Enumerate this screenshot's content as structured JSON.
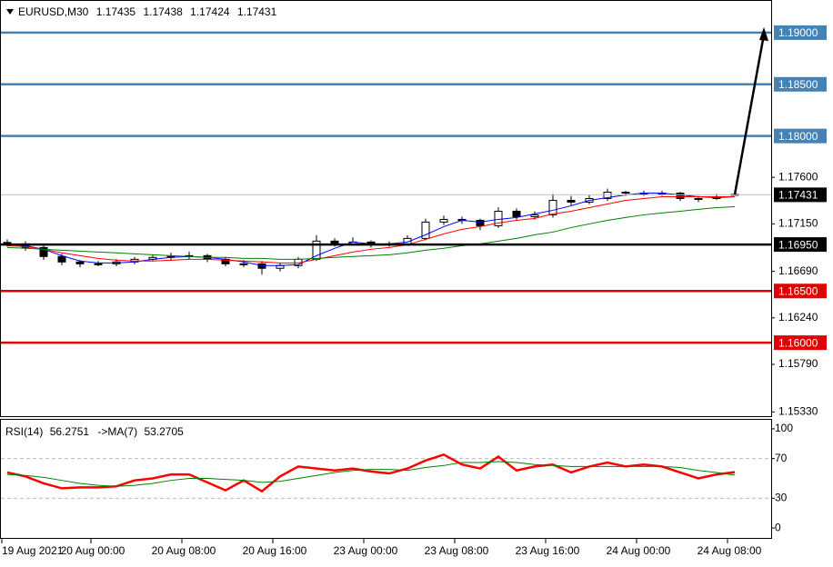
{
  "chart_data": [
    {
      "type": "candlestick",
      "symbol": "EURUSD,M30",
      "candles": [
        [
          1.1697,
          1.17,
          1.1693,
          1.16956
        ],
        [
          1.16956,
          1.1698,
          1.1689,
          1.16921
        ],
        [
          1.16921,
          1.1694,
          1.168,
          1.16834
        ],
        [
          1.16834,
          1.1686,
          1.1675,
          1.16781
        ],
        [
          1.16781,
          1.168,
          1.1673,
          1.16763
        ],
        [
          1.16763,
          1.1679,
          1.1674,
          1.16763
        ],
        [
          1.16763,
          1.1681,
          1.1674,
          1.16781
        ],
        [
          1.16781,
          1.1683,
          1.1676,
          1.16807
        ],
        [
          1.16807,
          1.1685,
          1.1679,
          1.16825
        ],
        [
          1.16825,
          1.1687,
          1.168,
          1.16834
        ],
        [
          1.16834,
          1.1688,
          1.1681,
          1.16842
        ],
        [
          1.16842,
          1.1686,
          1.1678,
          1.16807
        ],
        [
          1.16807,
          1.1683,
          1.1674,
          1.16763
        ],
        [
          1.16763,
          1.168,
          1.1673,
          1.16763
        ],
        [
          1.16763,
          1.1679,
          1.1666,
          1.1672
        ],
        [
          1.1672,
          1.1677,
          1.1669,
          1.16746
        ],
        [
          1.16746,
          1.1683,
          1.1672,
          1.16807
        ],
        [
          1.16807,
          1.1704,
          1.1679,
          1.16983
        ],
        [
          1.16983,
          1.1701,
          1.1693,
          1.16956
        ],
        [
          1.16956,
          1.1702,
          1.1694,
          1.16974
        ],
        [
          1.16974,
          1.1699,
          1.1692,
          1.16948
        ],
        [
          1.16948,
          1.1698,
          1.1693,
          1.16956
        ],
        [
          1.16956,
          1.1704,
          1.1694,
          1.17009
        ],
        [
          1.17009,
          1.172,
          1.1699,
          1.17167
        ],
        [
          1.17167,
          1.1723,
          1.1714,
          1.17193
        ],
        [
          1.17193,
          1.1722,
          1.1715,
          1.17184
        ],
        [
          1.17184,
          1.172,
          1.1709,
          1.17132
        ],
        [
          1.17132,
          1.1731,
          1.1711,
          1.17272
        ],
        [
          1.17272,
          1.173,
          1.1719,
          1.17219
        ],
        [
          1.17219,
          1.1727,
          1.1719,
          1.17237
        ],
        [
          1.17237,
          1.1744,
          1.1721,
          1.17377
        ],
        [
          1.17377,
          1.1742,
          1.1733,
          1.1736
        ],
        [
          1.1736,
          1.1743,
          1.1734,
          1.17395
        ],
        [
          1.17395,
          1.1749,
          1.1737,
          1.17456
        ],
        [
          1.17456,
          1.1747,
          1.1742,
          1.17447
        ],
        [
          1.17447,
          1.1747,
          1.1742,
          1.17447
        ],
        [
          1.17447,
          1.1747,
          1.1742,
          1.17447
        ],
        [
          1.17447,
          1.1746,
          1.1737,
          1.17395
        ],
        [
          1.17395,
          1.1742,
          1.1736,
          1.17395
        ],
        [
          1.17395,
          1.1744,
          1.1738,
          1.17412
        ],
        [
          1.17435,
          1.17438,
          1.17424,
          1.17431
        ]
      ],
      "series": [
        {
          "color": "#0000ff",
          "values": [
            1.16956,
            1.16939,
            1.16904,
            1.16842,
            1.1679,
            1.16772,
            1.16772,
            1.16781,
            1.16807,
            1.16825,
            1.16834,
            1.16825,
            1.16807,
            1.16781,
            1.16746,
            1.16746,
            1.16755,
            1.16842,
            1.16913,
            1.16974,
            1.16956,
            1.16956,
            1.16974,
            1.17044,
            1.17123,
            1.17184,
            1.17167,
            1.17193,
            1.17211,
            1.17246,
            1.17281,
            1.17325,
            1.17377,
            1.17404,
            1.1743,
            1.17447,
            1.17447,
            1.1743,
            1.17412,
            1.17404,
            1.17412
          ]
        },
        {
          "color": "#ff0000",
          "values": [
            1.16939,
            1.1693,
            1.16904,
            1.16869,
            1.16842,
            1.16816,
            1.16798,
            1.1679,
            1.1679,
            1.16798,
            1.16807,
            1.16807,
            1.16798,
            1.1679,
            1.16781,
            1.16772,
            1.16772,
            1.16807,
            1.16842,
            1.16877,
            1.16904,
            1.16921,
            1.16948,
            1.17,
            1.17053,
            1.17097,
            1.17123,
            1.17158,
            1.17184,
            1.17202,
            1.17246,
            1.17272,
            1.17307,
            1.17342,
            1.17377,
            1.17395,
            1.17412,
            1.17412,
            1.17412,
            1.17412,
            1.17412
          ]
        },
        {
          "color": "#008000",
          "values": [
            1.16921,
            1.16913,
            1.16904,
            1.16895,
            1.16886,
            1.16877,
            1.16869,
            1.1686,
            1.16851,
            1.16842,
            1.16834,
            1.16825,
            1.16825,
            1.16816,
            1.16816,
            1.16807,
            1.16807,
            1.16816,
            1.16825,
            1.16834,
            1.16842,
            1.16851,
            1.16869,
            1.16895,
            1.16913,
            1.16939,
            1.16956,
            1.16983,
            1.17009,
            1.17044,
            1.1707,
            1.17114,
            1.17149,
            1.17184,
            1.17211,
            1.17237,
            1.17255,
            1.17272,
            1.1729,
            1.17307,
            1.17316
          ]
        }
      ],
      "ylim": [
        1.15289,
        1.19307
      ],
      "yticks": [
        {
          "value": 1.176,
          "label": "1.17600"
        },
        {
          "value": 1.1715,
          "label": "1.17150"
        },
        {
          "value": 1.1669,
          "label": "1.16690"
        },
        {
          "value": 1.1624,
          "label": "1.16240"
        },
        {
          "value": 1.1579,
          "label": "1.15790"
        },
        {
          "value": 1.1533,
          "label": "1.15330"
        }
      ],
      "levels": [
        {
          "value": 1.19,
          "label": "1.19000",
          "color": "#4682b4"
        },
        {
          "value": 1.185,
          "label": "1.18500",
          "color": "#4682b4"
        },
        {
          "value": 1.18,
          "label": "1.18000",
          "color": "#4682b4"
        },
        {
          "value": 1.1695,
          "label": "1.16950",
          "color": "#000000"
        },
        {
          "value": 1.165,
          "label": "1.16500",
          "color": "#e00000"
        },
        {
          "value": 1.16,
          "label": "1.16000",
          "color": "#e00000"
        }
      ],
      "x_labels": [
        "19 Aug 2021",
        "20 Aug 00:00",
        "20 Aug 08:00",
        "20 Aug 16:00",
        "23 Aug 00:00",
        "23 Aug 08:00",
        "23 Aug 16:00",
        "24 Aug 00:00",
        "24 Aug 08:00"
      ]
    },
    {
      "type": "line",
      "title": "RSI(14)",
      "ma_label": "->MA(7)",
      "series": [
        {
          "color": "#ff0000",
          "values": [
            56,
            52,
            45,
            40,
            41,
            41,
            42,
            48,
            50,
            54,
            54,
            46,
            38,
            48,
            37,
            52,
            62,
            60,
            58,
            60,
            57,
            55,
            60,
            68,
            74,
            64,
            60,
            72,
            58,
            62,
            64,
            56,
            62,
            66,
            62,
            64,
            62,
            56,
            50,
            54,
            56.2751
          ]
        },
        {
          "color": "#008000",
          "values": [
            54,
            53,
            51,
            48,
            45,
            43,
            42,
            43,
            45,
            48,
            50,
            50,
            49,
            48,
            46,
            47,
            50,
            53,
            56,
            58,
            59,
            59,
            58,
            61,
            63,
            66,
            66,
            67,
            66,
            64,
            63,
            62,
            62,
            62,
            62,
            62,
            62,
            61,
            58,
            56,
            53.2705
          ]
        }
      ],
      "ylim": [
        -10,
        110
      ],
      "yticks": [
        100,
        70,
        30,
        0
      ],
      "levels": [
        70,
        30
      ]
    }
  ]
}
